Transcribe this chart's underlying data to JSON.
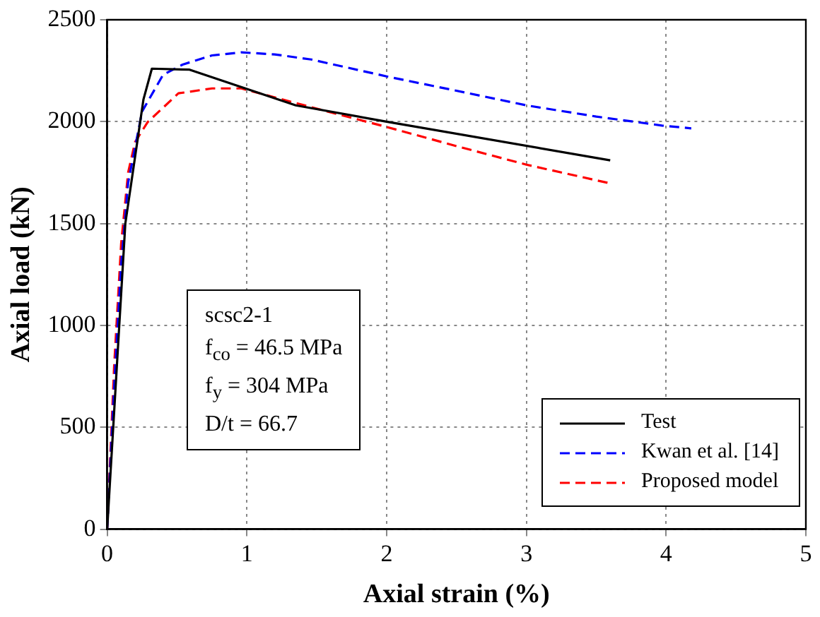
{
  "chart_data": {
    "type": "line",
    "xlabel": "Axial strain (%)",
    "ylabel": "Axial load (kN)",
    "xlim": [
      0,
      5
    ],
    "xticks": [
      0,
      1,
      2,
      3,
      4,
      5
    ],
    "ylim": [
      0,
      2500
    ],
    "yticks": [
      0,
      500,
      1000,
      1500,
      2000,
      2500
    ],
    "grid": true,
    "legend": "bottom right",
    "marker": "none",
    "annotations": [
      "scsc2-1",
      "f$_{co}$ = 46.5 MPa",
      "f$_{y}$ = 304 MPa",
      "D/t = 66.7"
    ],
    "series": [
      {
        "name": "Test",
        "color": "#000000",
        "line_style": "solid",
        "x": [
          0,
          0.13,
          0.26,
          0.32,
          0.59,
          1.35,
          2.0,
          3.6
        ],
        "values": [
          0,
          1500,
          2110,
          2260,
          2255,
          2080,
          2000,
          1810
        ]
      },
      {
        "name": "Kwan et al. [14]",
        "color": "#0000ff",
        "line_style": "dashed",
        "x": [
          0,
          0.05,
          0.1,
          0.15,
          0.25,
          0.4,
          0.54,
          0.75,
          0.96,
          1.2,
          1.46,
          2.0,
          2.59,
          3.0,
          3.5,
          3.97,
          4.18
        ],
        "values": [
          0,
          700,
          1300,
          1700,
          2050,
          2230,
          2280,
          2325,
          2340,
          2330,
          2305,
          2222,
          2139,
          2080,
          2025,
          1981,
          1967
        ]
      },
      {
        "name": "Proposed model",
        "color": "#ff0000",
        "line_style": "dashed",
        "x": [
          0,
          0.05,
          0.1,
          0.15,
          0.2,
          0.29,
          0.51,
          0.75,
          0.96,
          1.28,
          1.67,
          2.0,
          2.5,
          3.0,
          3.6
        ],
        "values": [
          0,
          800,
          1400,
          1750,
          1900,
          1998,
          2139,
          2163,
          2163,
          2104,
          2033,
          1974,
          1880,
          1789,
          1697
        ]
      }
    ]
  }
}
